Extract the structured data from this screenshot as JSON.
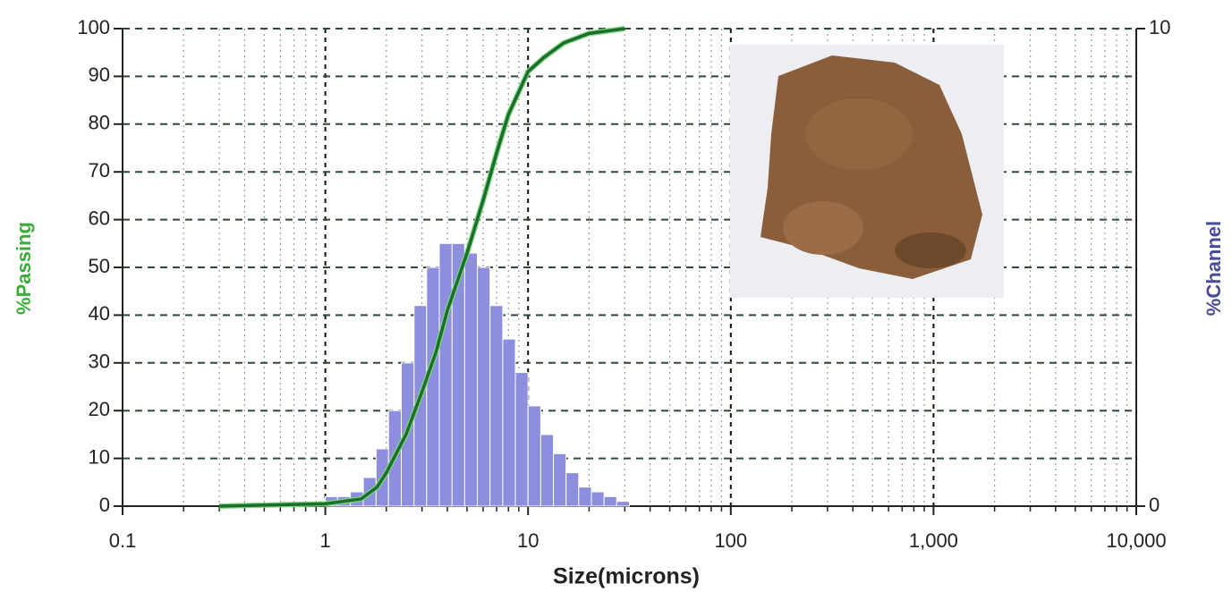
{
  "chart_data": {
    "type": "histogram",
    "xlabel": "Size(microns)",
    "ylabel": "%Passing",
    "y2label": "%Channel",
    "log_x": true,
    "grid": true,
    "xlim": [
      0.1,
      10000
    ],
    "xticks": [
      0.1,
      1,
      10,
      100,
      {
        "value": 1000,
        "label": "1,000"
      },
      {
        "value": 10000,
        "label": "10,000"
      }
    ],
    "ylim": [
      0,
      100
    ],
    "yticks": [
      0,
      10,
      20,
      30,
      40,
      50,
      60,
      70,
      80,
      90,
      100
    ],
    "y2lim": [
      0,
      10
    ],
    "y2ticks": [
      0,
      10
    ],
    "bins": [
      1,
      1.15,
      1.33,
      1.54,
      1.78,
      2.05,
      2.37,
      2.74,
      3.16,
      3.65,
      4.22,
      4.87,
      5.62,
      6.49,
      7.5,
      8.66,
      10,
      11.55,
      13.34,
      15.4,
      17.78,
      20.54,
      23.71,
      27.38,
      31.62
    ],
    "counts": [
      0.2,
      0.2,
      0.3,
      0.6,
      1.2,
      2.0,
      3.0,
      4.2,
      5.0,
      5.5,
      5.5,
      5.3,
      5.0,
      4.2,
      3.5,
      2.8,
      2.1,
      1.5,
      1.1,
      0.7,
      0.4,
      0.3,
      0.2,
      0.1
    ],
    "bar_color": "#8e8ede",
    "line": {
      "x": [
        0.3,
        1,
        1.5,
        1.8,
        2,
        2.5,
        3,
        3.5,
        4,
        5,
        6,
        7,
        8,
        10,
        12,
        15,
        20,
        30
      ],
      "values": [
        0,
        0.5,
        1.5,
        4,
        7,
        15,
        24,
        32,
        41,
        53,
        64,
        74,
        82,
        91,
        94,
        97,
        99,
        100
      ],
      "color": "#1b6e2c"
    }
  }
}
